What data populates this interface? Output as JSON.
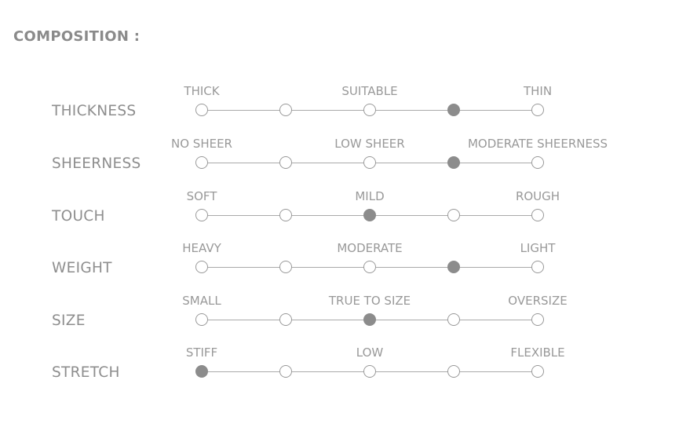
{
  "title": "COMPOSITION :",
  "colors": {
    "text": "#8e8e8e",
    "selected": "#8c8c8c",
    "line": "#aaaaaa"
  },
  "rows": [
    {
      "name": "THICKNESS",
      "left": "THICK",
      "mid": "SUITABLE",
      "right": "THIN",
      "selected_index": 3
    },
    {
      "name": "SHEERNESS",
      "left": "NO SHEER",
      "mid": "LOW SHEER",
      "right": "MODERATE SHEERNESS",
      "selected_index": 3
    },
    {
      "name": "TOUCH",
      "left": "SOFT",
      "mid": "MILD",
      "right": "ROUGH",
      "selected_index": 2
    },
    {
      "name": "WEIGHT",
      "left": "HEAVY",
      "mid": "MODERATE",
      "right": "LIGHT",
      "selected_index": 3
    },
    {
      "name": "SIZE",
      "left": "SMALL",
      "mid": "TRUE TO SIZE",
      "right": "OVERSIZE",
      "selected_index": 2
    },
    {
      "name": "STRETCH",
      "left": "STIFF",
      "mid": "LOW",
      "right": "FLEXIBLE",
      "selected_index": 0
    }
  ]
}
